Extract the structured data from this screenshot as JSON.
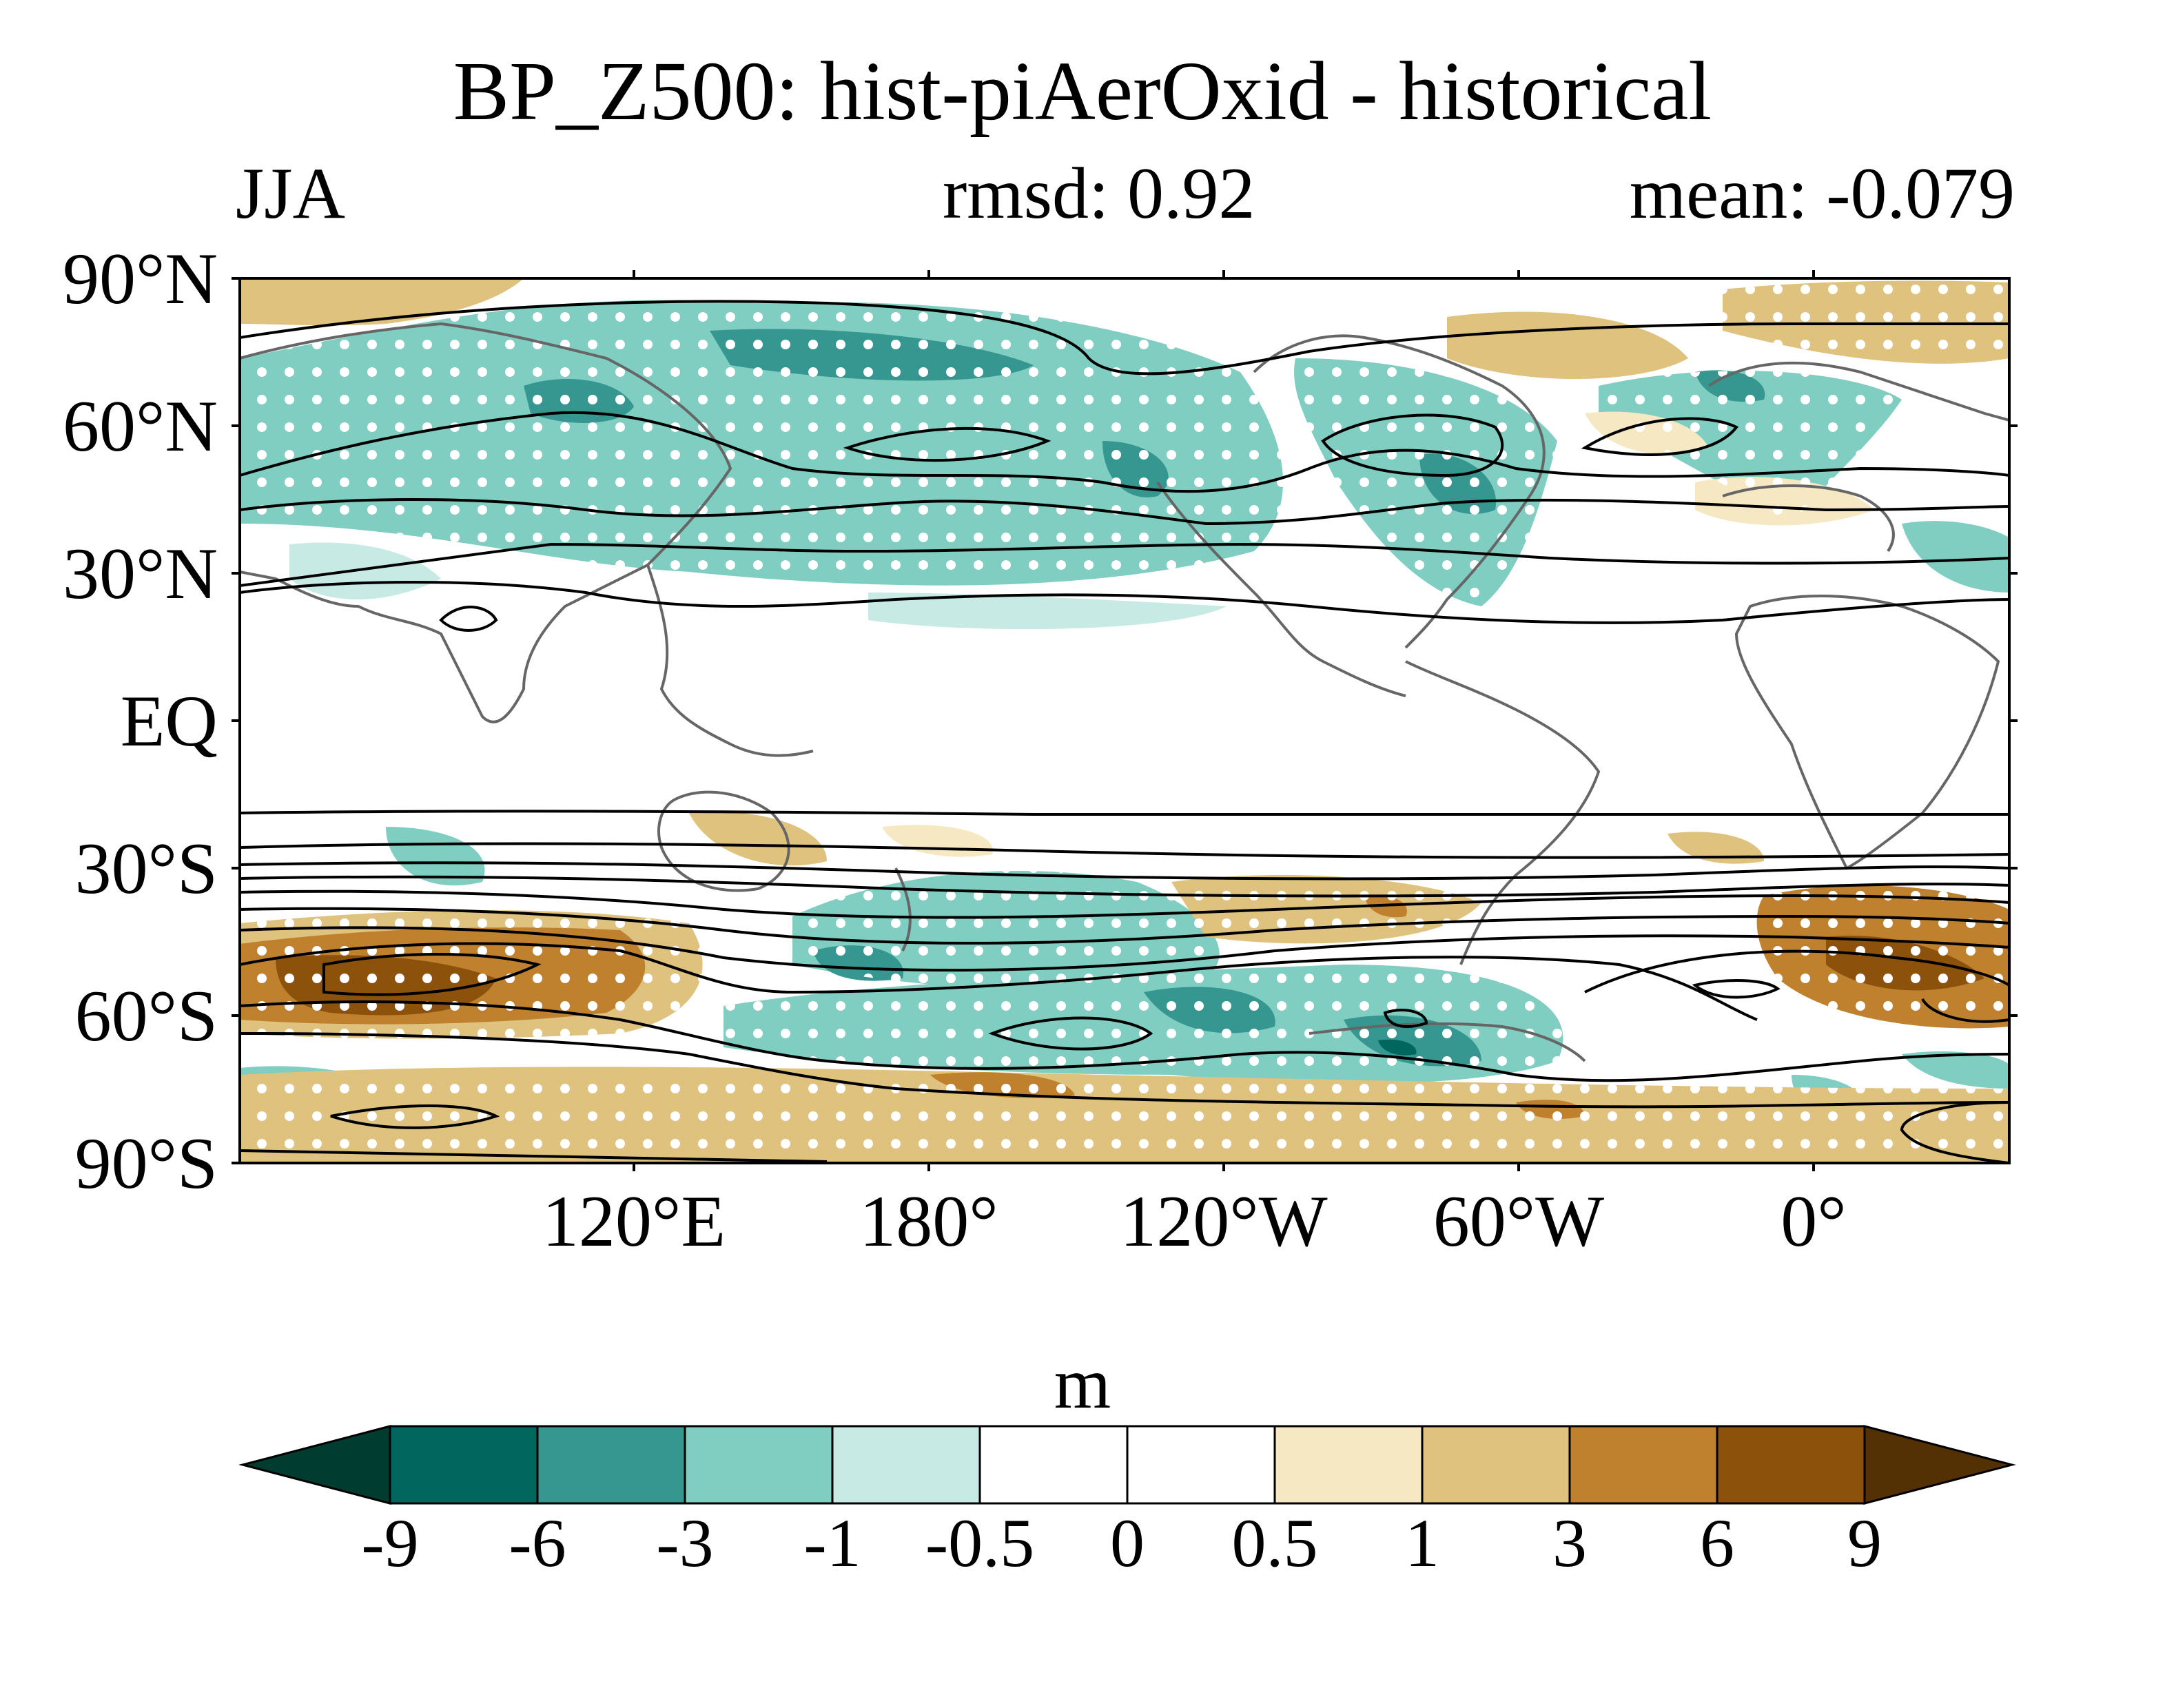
{
  "title": "BP_Z500: hist-piAerOxid - historical",
  "season": "JJA",
  "rmsd": "rmsd: 0.92",
  "mean": "mean: -0.079",
  "latitude_labels": [
    "90°N",
    "60°N",
    "30°N",
    "EQ",
    "30°S",
    "60°S",
    "90°S"
  ],
  "longitude_labels": [
    "120°E",
    "180°",
    "120°W",
    "60°W",
    "0°"
  ],
  "colorbar": {
    "units": "m",
    "labels": [
      "-9",
      "-6",
      "-3",
      "-1",
      "-0.5",
      "0",
      "0.5",
      "1",
      "3",
      "6",
      "9"
    ],
    "colors": [
      "#003c30",
      "#01665e",
      "#35978f",
      "#80cdc1",
      "#c7eae5",
      "#ffffff",
      "#ffffff",
      "#f6e8c3",
      "#dfc27d",
      "#bf812d",
      "#8c510a",
      "#543005"
    ]
  }
}
